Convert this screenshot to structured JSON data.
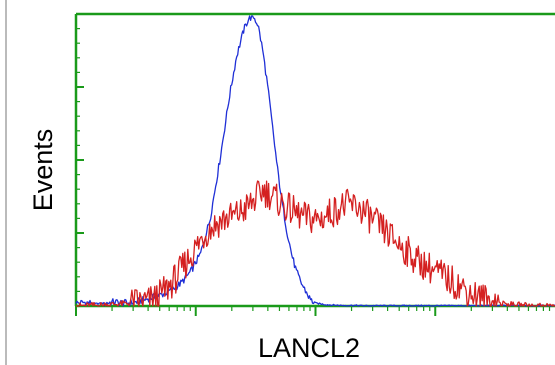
{
  "chart_data": {
    "type": "line",
    "xlabel": "LANCL2",
    "ylabel": "Events",
    "x_scale": "log",
    "xlim": [
      0.0,
      1.0
    ],
    "ylim": [
      0,
      1
    ],
    "grid": false,
    "colors": {
      "frame": "#1a9a1a",
      "series_blue": "#1f2fd6",
      "series_red": "#d42020",
      "ticks": "#1a9a1a",
      "left_border": "#bbbbbb"
    },
    "series": [
      {
        "color": "#1f2fd6",
        "x": [
          0.0,
          0.02,
          0.04,
          0.06,
          0.08,
          0.1,
          0.12,
          0.14,
          0.16,
          0.18,
          0.2,
          0.22,
          0.24,
          0.26,
          0.28,
          0.3,
          0.32,
          0.335,
          0.35,
          0.36,
          0.37,
          0.38,
          0.39,
          0.4,
          0.41,
          0.42,
          0.43,
          0.44,
          0.45,
          0.46,
          0.47,
          0.48,
          0.49,
          0.5,
          0.52,
          0.54,
          0.56,
          0.58,
          0.6,
          0.65,
          0.7,
          0.8,
          0.9,
          1.0
        ],
        "y": [
          0.01,
          0.012,
          0.008,
          0.01,
          0.014,
          0.01,
          0.012,
          0.02,
          0.03,
          0.04,
          0.055,
          0.08,
          0.12,
          0.18,
          0.3,
          0.5,
          0.72,
          0.86,
          0.95,
          0.99,
          1.0,
          0.97,
          0.88,
          0.76,
          0.62,
          0.48,
          0.36,
          0.26,
          0.18,
          0.12,
          0.08,
          0.05,
          0.02,
          0.01,
          0.005,
          0.003,
          0.002,
          0.002,
          0.001,
          0.001,
          0.001,
          0.001,
          0.001,
          0.001
        ]
      },
      {
        "color": "#d42020",
        "x": [
          0.0,
          0.05,
          0.1,
          0.15,
          0.17,
          0.19,
          0.21,
          0.23,
          0.25,
          0.27,
          0.29,
          0.31,
          0.33,
          0.35,
          0.37,
          0.39,
          0.41,
          0.43,
          0.45,
          0.47,
          0.49,
          0.51,
          0.53,
          0.55,
          0.57,
          0.59,
          0.61,
          0.63,
          0.65,
          0.67,
          0.69,
          0.71,
          0.73,
          0.75,
          0.77,
          0.79,
          0.81,
          0.83,
          0.85,
          0.87,
          0.89,
          0.91,
          0.95,
          1.0
        ],
        "y": [
          0.0,
          0.003,
          0.008,
          0.015,
          0.03,
          0.06,
          0.1,
          0.15,
          0.2,
          0.25,
          0.28,
          0.3,
          0.31,
          0.33,
          0.36,
          0.4,
          0.38,
          0.35,
          0.33,
          0.31,
          0.3,
          0.3,
          0.32,
          0.34,
          0.35,
          0.34,
          0.31,
          0.28,
          0.25,
          0.22,
          0.19,
          0.16,
          0.14,
          0.12,
          0.1,
          0.08,
          0.06,
          0.04,
          0.025,
          0.015,
          0.008,
          0.004,
          0.001,
          0.0
        ]
      }
    ]
  }
}
